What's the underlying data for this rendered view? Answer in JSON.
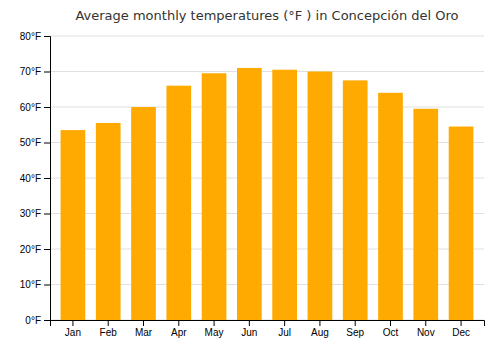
{
  "chart_data": {
    "type": "bar",
    "title": "Average monthly temperatures (°F ) in Concepción del Oro",
    "categories": [
      "Jan",
      "Feb",
      "Mar",
      "Apr",
      "May",
      "Jun",
      "Jul",
      "Aug",
      "Sep",
      "Oct",
      "Nov",
      "Dec"
    ],
    "values": [
      53.5,
      55.5,
      60.0,
      66.0,
      69.5,
      71.0,
      70.5,
      70.0,
      67.5,
      64.0,
      59.5,
      54.5
    ],
    "color": "#FFAA00",
    "ylim": [
      0,
      80
    ],
    "yticks": [
      {
        "value": 0,
        "label": "0°F"
      },
      {
        "value": 10,
        "label": "10°F"
      },
      {
        "value": 20,
        "label": "20°F"
      },
      {
        "value": 30,
        "label": "30°F"
      },
      {
        "value": 40,
        "label": "40°F"
      },
      {
        "value": 50,
        "label": "50°F"
      },
      {
        "value": 60,
        "label": "60°F"
      },
      {
        "value": 70,
        "label": "70°F"
      },
      {
        "value": 80,
        "label": "80°F"
      }
    ],
    "grid": true
  }
}
